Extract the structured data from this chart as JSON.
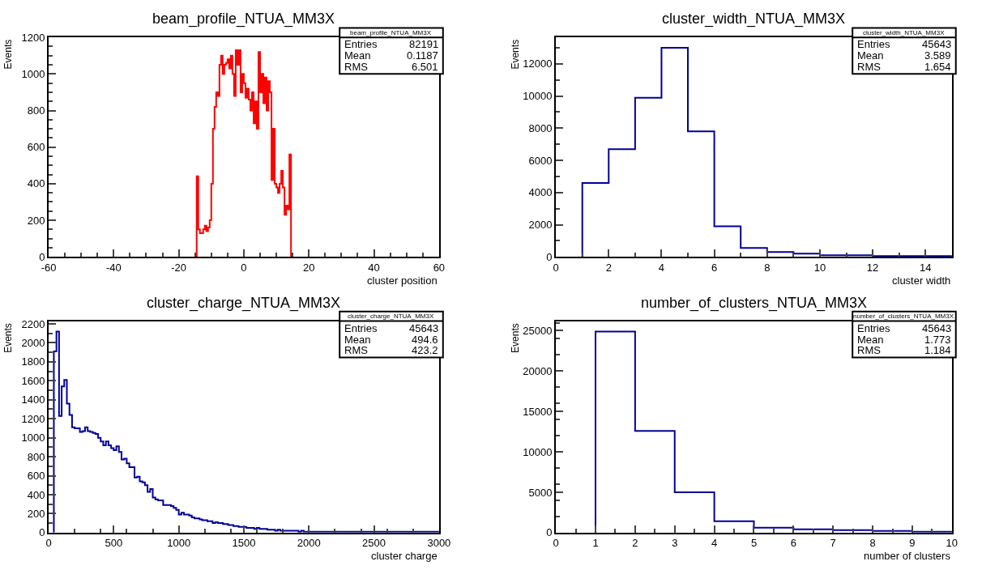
{
  "chart_data": [
    {
      "type": "histogram",
      "title": "beam_profile_NTUA_MM3X",
      "xlabel": "cluster position",
      "ylabel": "Events",
      "color": "#ff0000",
      "bins": [
        -14.5,
        -14,
        -13.5,
        -13,
        -12.5,
        -12,
        -11.5,
        -11,
        -10.5,
        -10,
        -9.5,
        -9,
        -8.5,
        -8,
        -7.5,
        -7,
        -6.5,
        -6,
        -5.5,
        -5,
        -4.5,
        -4,
        -3.5,
        -3,
        -2.5,
        -2,
        -1.5,
        -1,
        -0.5,
        0,
        0.5,
        1,
        1.5,
        2,
        2.5,
        3,
        3.5,
        4,
        4.5,
        5,
        5.5,
        6,
        6.5,
        7,
        7.5,
        8,
        8.5,
        9,
        9.5,
        10,
        10.5,
        11,
        11.5,
        12,
        12.5,
        13,
        13.5,
        14,
        14.5
      ],
      "values": [
        440,
        150,
        130,
        130,
        150,
        170,
        140,
        160,
        200,
        400,
        700,
        820,
        900,
        880,
        1050,
        1100,
        1000,
        1050,
        1060,
        1080,
        1030,
        1100,
        1000,
        880,
        1130,
        1050,
        1130,
        900,
        1000,
        950,
        870,
        920,
        860,
        800,
        900,
        730,
        850,
        700,
        1120,
        900,
        1000,
        840,
        980,
        800,
        960,
        900,
        420,
        700,
        400,
        380,
        350,
        400,
        470,
        380,
        230,
        280,
        260,
        560
      ],
      "xlim": [
        -60,
        60
      ],
      "xticks": [
        -60,
        -40,
        -20,
        0,
        20,
        40,
        60
      ],
      "ylim": [
        0,
        1200
      ],
      "yticks": [
        0,
        200,
        400,
        600,
        800,
        1000,
        1200
      ],
      "annotations": [
        "beam_profile_NTUA_MM3X",
        "Entries",
        "82191",
        "Mean",
        "0.1187",
        "RMS",
        "6.501"
      ]
    },
    {
      "type": "histogram",
      "title": "cluster_width_NTUA_MM3X",
      "xlabel": "cluster width",
      "ylabel": "Events",
      "color": "#000099",
      "bins": [
        1,
        2,
        3,
        4,
        5,
        6,
        7,
        8,
        9,
        10,
        11,
        12,
        13,
        14,
        15
      ],
      "values": [
        4600,
        6700,
        9900,
        13000,
        7800,
        1900,
        550,
        300,
        200,
        100,
        100,
        50,
        50,
        50
      ],
      "xlim": [
        0,
        15
      ],
      "xticks": [
        0,
        2,
        4,
        6,
        8,
        10,
        12,
        14
      ],
      "ylim": [
        0,
        13650
      ],
      "yticks": [
        0,
        2000,
        4000,
        6000,
        8000,
        10000,
        12000
      ],
      "annotations": [
        "cluster_width_NTUA_MM3X",
        "Entries",
        "45643",
        "Mean",
        "3.589",
        "RMS",
        "1.654"
      ]
    },
    {
      "type": "histogram",
      "title": "cluster_charge_NTUA_MM3X",
      "xlabel": "cluster charge",
      "ylabel": "Events",
      "color": "#000099",
      "bins": [
        40,
        60,
        80,
        100,
        120,
        140,
        160,
        180,
        200,
        220,
        240,
        260,
        280,
        300,
        320,
        340,
        360,
        380,
        400,
        420,
        440,
        460,
        480,
        500,
        520,
        540,
        560,
        580,
        600,
        620,
        640,
        660,
        680,
        700,
        720,
        740,
        760,
        780,
        800,
        820,
        840,
        860,
        880,
        900,
        920,
        940,
        960,
        980,
        1000,
        1020,
        1040,
        1060,
        1080,
        1100,
        1120,
        1140,
        1160,
        1180,
        1200,
        1220,
        1240,
        1260,
        1280,
        1300,
        1320,
        1340,
        1360,
        1380,
        1400,
        1420,
        1440,
        1460,
        1480,
        1500,
        1520,
        1540,
        1560,
        1580,
        1600,
        1620,
        1640,
        1660,
        1680,
        1700,
        1720,
        1740,
        1760,
        1780,
        1800,
        1820,
        1840,
        1860,
        1880,
        1900,
        1920,
        1940,
        1960,
        1980,
        2000,
        2020,
        2040,
        2060,
        2080,
        2100,
        2120,
        2140,
        2160,
        2180,
        2200,
        2220,
        2240,
        2260,
        2280,
        2300,
        2320,
        2340,
        2360,
        2380,
        2400,
        2420,
        2440,
        2460,
        2480,
        2500,
        2520,
        2540,
        2560,
        2580,
        2600,
        2620,
        2640,
        2660,
        2680,
        2700,
        2720,
        2740,
        2760,
        2780,
        2800,
        2820,
        2840,
        2860,
        2880,
        2900,
        2920,
        2940,
        2960,
        2980,
        3000
      ],
      "values": [
        1910,
        2120,
        1230,
        1540,
        1610,
        1360,
        1240,
        1110,
        1100,
        1100,
        1060,
        1070,
        1110,
        1070,
        1060,
        1050,
        1040,
        1000,
        960,
        920,
        960,
        920,
        890,
        870,
        910,
        850,
        770,
        780,
        730,
        690,
        690,
        580,
        590,
        540,
        530,
        500,
        430,
        460,
        370,
        350,
        340,
        340,
        290,
        290,
        290,
        280,
        260,
        240,
        190,
        210,
        190,
        190,
        180,
        160,
        150,
        150,
        140,
        130,
        130,
        120,
        120,
        100,
        110,
        100,
        100,
        90,
        90,
        80,
        80,
        70,
        70,
        60,
        60,
        60,
        50,
        50,
        50,
        40,
        50,
        40,
        40,
        40,
        30,
        30,
        30,
        20,
        30,
        20,
        20,
        20,
        20,
        20,
        20,
        20,
        10,
        20,
        10,
        10,
        10,
        10,
        10,
        10,
        10,
        10,
        10,
        10,
        10,
        10,
        10,
        10,
        10,
        10,
        10,
        10,
        10,
        10,
        10,
        10,
        10,
        10,
        10,
        10,
        10,
        10,
        10,
        10,
        10,
        10,
        10,
        10,
        10,
        10,
        10,
        10,
        10,
        10,
        10,
        10,
        10,
        10,
        10,
        10,
        10,
        10,
        10,
        10,
        10,
        10
      ],
      "xlim": [
        0,
        3000
      ],
      "xticks": [
        0,
        500,
        1000,
        1500,
        2000,
        2500,
        3000
      ],
      "ylim": [
        0,
        2230
      ],
      "yticks": [
        0,
        200,
        400,
        600,
        800,
        1000,
        1200,
        1400,
        1600,
        1800,
        2000,
        2200
      ],
      "annotations": [
        "cluster_charge_NTUA_MM3X",
        "Entries",
        "45643",
        "Mean",
        "494.6",
        "RMS",
        "423.2"
      ]
    },
    {
      "type": "histogram",
      "title": "number_of_clusters_NTUA_MM3X",
      "xlabel": "number of clusters",
      "ylabel": "Events",
      "color": "#000099",
      "bins": [
        1,
        2,
        3,
        4,
        5,
        6,
        7,
        8,
        9,
        10
      ],
      "values": [
        24900,
        12600,
        5000,
        1400,
        600,
        400,
        300,
        200,
        100
      ],
      "xlim": [
        0,
        10
      ],
      "xticks": [
        0,
        1,
        2,
        3,
        4,
        5,
        6,
        7,
        8,
        9,
        10
      ],
      "ylim": [
        0,
        26200
      ],
      "yticks": [
        0,
        5000,
        10000,
        15000,
        20000,
        25000
      ],
      "annotations": [
        "number_of_clusters_NTUA_MM3X",
        "Entries",
        "45643",
        "Mean",
        "1.773",
        "RMS",
        "1.184"
      ]
    }
  ]
}
